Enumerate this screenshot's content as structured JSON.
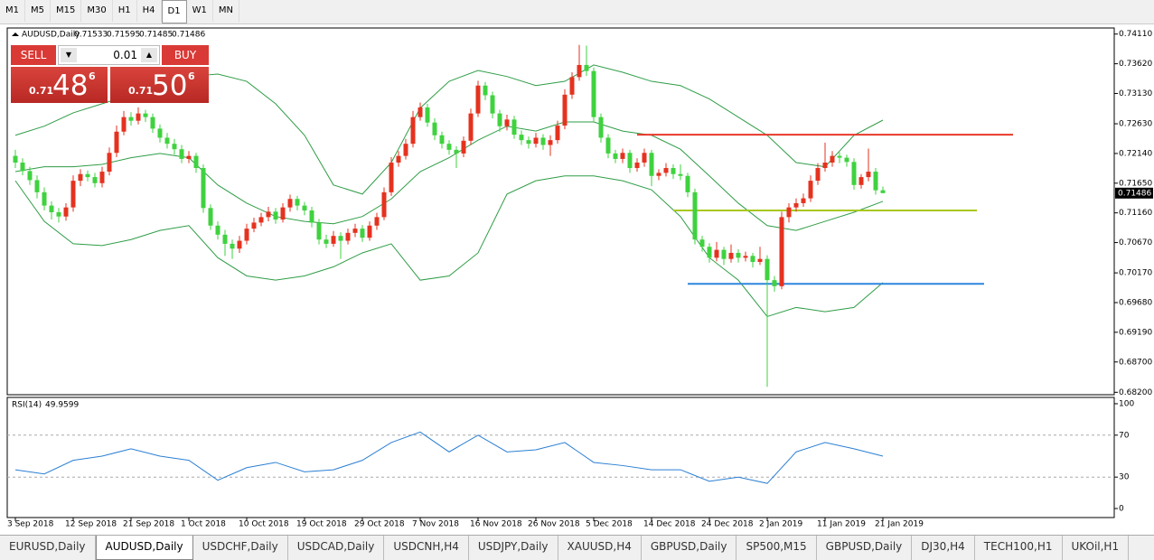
{
  "toolbar": {
    "timeframes": [
      "M1",
      "M5",
      "M15",
      "M30",
      "H1",
      "H4",
      "D1",
      "W1",
      "MN"
    ],
    "active": "D1"
  },
  "trade_panel": {
    "sell": "SELL",
    "lot": "0.01",
    "buy": "BUY",
    "bid": {
      "big": "0.71",
      "pips": "48",
      "point": "6"
    },
    "ask": {
      "big": "0.71",
      "pips": "50",
      "point": "6"
    }
  },
  "chart_data": [
    {
      "type": "candlestick",
      "title": "AUDUSD,Daily",
      "up_color": "#e5321f",
      "down_color": "#3fd23f",
      "xlim": [
        -1.125,
        152
      ],
      "ylim": [
        0.6816,
        0.7421
      ],
      "yticks": [
        {
          "value": 0.7411,
          "label": "0.74110"
        },
        {
          "value": 0.7362,
          "label": "0.73620"
        },
        {
          "value": 0.7313,
          "label": "0.73130"
        },
        {
          "value": 0.7263,
          "label": "0.72630"
        },
        {
          "value": 0.7214,
          "label": "0.72140"
        },
        {
          "value": 0.7165,
          "label": "0.71650"
        },
        {
          "value": 0.7116,
          "label": "0.71160"
        },
        {
          "value": 0.7067,
          "label": "0.70670"
        },
        {
          "value": 0.7017,
          "label": "0.70170"
        },
        {
          "value": 0.6968,
          "label": "0.69680"
        },
        {
          "value": 0.6919,
          "label": "0.69190"
        },
        {
          "value": 0.687,
          "label": "0.68700"
        },
        {
          "value": 0.682,
          "label": "0.68200"
        }
      ],
      "xticks": [
        {
          "value": 0,
          "label": "3 Sep 2018"
        },
        {
          "value": 8,
          "label": "12 Sep 2018"
        },
        {
          "value": 16,
          "label": "21 Sep 2018"
        },
        {
          "value": 24,
          "label": "1 Oct 2018"
        },
        {
          "value": 32,
          "label": "10 Oct 2018"
        },
        {
          "value": 40,
          "label": "19 Oct 2018"
        },
        {
          "value": 48,
          "label": "29 Oct 2018"
        },
        {
          "value": 56,
          "label": "7 Nov 2018"
        },
        {
          "value": 64,
          "label": "16 Nov 2018"
        },
        {
          "value": 72,
          "label": "26 Nov 2018"
        },
        {
          "value": 80,
          "label": "5 Dec 2018"
        },
        {
          "value": 88,
          "label": "14 Dec 2018"
        },
        {
          "value": 96,
          "label": "24 Dec 2018"
        },
        {
          "value": 104,
          "label": "2 Jan 2019"
        },
        {
          "value": 112,
          "label": "11 Jan 2019"
        },
        {
          "value": 120,
          "label": "21 Jan 2019"
        }
      ],
      "ohlc": [
        [
          0.721,
          0.722,
          0.719,
          0.7199
        ],
        [
          0.7199,
          0.7206,
          0.7178,
          0.7185
        ],
        [
          0.7185,
          0.7192,
          0.7162,
          0.717
        ],
        [
          0.717,
          0.7178,
          0.714,
          0.715
        ],
        [
          0.715,
          0.7158,
          0.712,
          0.7128
        ],
        [
          0.7128,
          0.7135,
          0.7105,
          0.7117
        ],
        [
          0.7117,
          0.7124,
          0.71,
          0.711
        ],
        [
          0.711,
          0.7132,
          0.7103,
          0.7125
        ],
        [
          0.7125,
          0.7178,
          0.7118,
          0.7169
        ],
        [
          0.7169,
          0.7188,
          0.716,
          0.718
        ],
        [
          0.718,
          0.7186,
          0.7168,
          0.7175
        ],
        [
          0.7175,
          0.7182,
          0.7158,
          0.7165
        ],
        [
          0.7165,
          0.7192,
          0.7158,
          0.7184
        ],
        [
          0.7184,
          0.7224,
          0.7178,
          0.7215
        ],
        [
          0.7215,
          0.726,
          0.7208,
          0.725
        ],
        [
          0.725,
          0.7284,
          0.7244,
          0.7274
        ],
        [
          0.7274,
          0.7282,
          0.726,
          0.7268
        ],
        [
          0.7268,
          0.729,
          0.7262,
          0.728
        ],
        [
          0.728,
          0.7286,
          0.7266,
          0.7274
        ],
        [
          0.7274,
          0.728,
          0.7248,
          0.7255
        ],
        [
          0.7255,
          0.7262,
          0.7232,
          0.724
        ],
        [
          0.724,
          0.7248,
          0.7222,
          0.723
        ],
        [
          0.723,
          0.7238,
          0.7212,
          0.7221
        ],
        [
          0.7221,
          0.7228,
          0.7198,
          0.7205
        ],
        [
          0.7205,
          0.7218,
          0.7198,
          0.721
        ],
        [
          0.721,
          0.7215,
          0.7182,
          0.719
        ],
        [
          0.719,
          0.7196,
          0.7116,
          0.7124
        ],
        [
          0.7124,
          0.713,
          0.7088,
          0.7095
        ],
        [
          0.7095,
          0.7102,
          0.7072,
          0.708
        ],
        [
          0.708,
          0.7088,
          0.7045,
          0.7065
        ],
        [
          0.7065,
          0.7072,
          0.704,
          0.7057
        ],
        [
          0.7057,
          0.7078,
          0.705,
          0.707
        ],
        [
          0.707,
          0.7098,
          0.7064,
          0.709
        ],
        [
          0.709,
          0.7108,
          0.7084,
          0.71
        ],
        [
          0.71,
          0.7116,
          0.7094,
          0.7109
        ],
        [
          0.7109,
          0.7126,
          0.7102,
          0.7118
        ],
        [
          0.7118,
          0.7124,
          0.7098,
          0.7105
        ],
        [
          0.7105,
          0.7132,
          0.71,
          0.7125
        ],
        [
          0.7125,
          0.7146,
          0.7118,
          0.7139
        ],
        [
          0.7139,
          0.7144,
          0.712,
          0.7128
        ],
        [
          0.7128,
          0.7134,
          0.7112,
          0.712
        ],
        [
          0.712,
          0.7126,
          0.7092,
          0.71
        ],
        [
          0.71,
          0.7106,
          0.7064,
          0.7072
        ],
        [
          0.7072,
          0.708,
          0.7058,
          0.7065
        ],
        [
          0.7065,
          0.7086,
          0.706,
          0.7078
        ],
        [
          0.7078,
          0.7084,
          0.704,
          0.707
        ],
        [
          0.707,
          0.709,
          0.7064,
          0.7083
        ],
        [
          0.7083,
          0.7098,
          0.7076,
          0.709
        ],
        [
          0.709,
          0.7096,
          0.7068,
          0.7075
        ],
        [
          0.7075,
          0.7102,
          0.707,
          0.7095
        ],
        [
          0.7095,
          0.7116,
          0.7088,
          0.7109
        ],
        [
          0.7109,
          0.7158,
          0.7104,
          0.715
        ],
        [
          0.715,
          0.7208,
          0.7144,
          0.7199
        ],
        [
          0.7199,
          0.7218,
          0.7192,
          0.721
        ],
        [
          0.721,
          0.7238,
          0.7204,
          0.723
        ],
        [
          0.723,
          0.7284,
          0.7224,
          0.7274
        ],
        [
          0.7274,
          0.7298,
          0.7268,
          0.729
        ],
        [
          0.729,
          0.7296,
          0.7258,
          0.7265
        ],
        [
          0.7265,
          0.7272,
          0.7236,
          0.7244
        ],
        [
          0.7244,
          0.725,
          0.7222,
          0.723
        ],
        [
          0.723,
          0.7236,
          0.7212,
          0.722
        ],
        [
          0.722,
          0.7226,
          0.719,
          0.7214
        ],
        [
          0.7214,
          0.7242,
          0.7208,
          0.7235
        ],
        [
          0.7235,
          0.7288,
          0.7228,
          0.728
        ],
        [
          0.728,
          0.7334,
          0.7274,
          0.7326
        ],
        [
          0.7326,
          0.7332,
          0.7302,
          0.731
        ],
        [
          0.731,
          0.7316,
          0.7272,
          0.728
        ],
        [
          0.728,
          0.7286,
          0.725,
          0.7259
        ],
        [
          0.7259,
          0.7278,
          0.7252,
          0.727
        ],
        [
          0.727,
          0.7276,
          0.7238,
          0.7245
        ],
        [
          0.7245,
          0.7252,
          0.7228,
          0.7236
        ],
        [
          0.7236,
          0.7242,
          0.7222,
          0.723
        ],
        [
          0.723,
          0.7248,
          0.7224,
          0.724
        ],
        [
          0.724,
          0.7246,
          0.722,
          0.7228
        ],
        [
          0.7228,
          0.7244,
          0.721,
          0.7236
        ],
        [
          0.7236,
          0.7268,
          0.723,
          0.726
        ],
        [
          0.726,
          0.732,
          0.7254,
          0.7311
        ],
        [
          0.7311,
          0.7348,
          0.7304,
          0.734
        ],
        [
          0.734,
          0.7393,
          0.7334,
          0.736
        ],
        [
          0.736,
          0.7392,
          0.7342,
          0.735
        ],
        [
          0.735,
          0.7356,
          0.7266,
          0.7274
        ],
        [
          0.7274,
          0.728,
          0.7232,
          0.724
        ],
        [
          0.724,
          0.7246,
          0.7206,
          0.7214
        ],
        [
          0.7214,
          0.722,
          0.7198,
          0.7205
        ],
        [
          0.7205,
          0.7222,
          0.7198,
          0.7215
        ],
        [
          0.7215,
          0.722,
          0.7182,
          0.719
        ],
        [
          0.719,
          0.7206,
          0.7184,
          0.7199
        ],
        [
          0.7199,
          0.7222,
          0.7192,
          0.7215
        ],
        [
          0.7215,
          0.722,
          0.716,
          0.7177
        ],
        [
          0.7177,
          0.7188,
          0.717,
          0.7182
        ],
        [
          0.7182,
          0.7198,
          0.7176,
          0.719
        ],
        [
          0.719,
          0.7196,
          0.7172,
          0.718
        ],
        [
          0.718,
          0.7196,
          0.717,
          0.7177
        ],
        [
          0.7177,
          0.7182,
          0.7142,
          0.715
        ],
        [
          0.715,
          0.7156,
          0.7064,
          0.7072
        ],
        [
          0.7072,
          0.7078,
          0.7052,
          0.706
        ],
        [
          0.706,
          0.7066,
          0.7034,
          0.7042
        ],
        [
          0.7042,
          0.7068,
          0.7036,
          0.7055
        ],
        [
          0.7055,
          0.706,
          0.703,
          0.704
        ],
        [
          0.704,
          0.7064,
          0.7034,
          0.705
        ],
        [
          0.705,
          0.7056,
          0.7034,
          0.7042
        ],
        [
          0.7042,
          0.7052,
          0.7036,
          0.7045
        ],
        [
          0.7045,
          0.705,
          0.7026,
          0.7035
        ],
        [
          0.7035,
          0.706,
          0.703,
          0.704
        ],
        [
          0.704,
          0.7046,
          0.6829,
          0.7005
        ],
        [
          0.7005,
          0.7012,
          0.6986,
          0.6995
        ],
        [
          0.6995,
          0.7118,
          0.699,
          0.7109
        ],
        [
          0.7109,
          0.7132,
          0.71,
          0.7125
        ],
        [
          0.7125,
          0.714,
          0.7118,
          0.7132
        ],
        [
          0.7132,
          0.7148,
          0.7126,
          0.714
        ],
        [
          0.714,
          0.7178,
          0.7134,
          0.7169
        ],
        [
          0.7169,
          0.7198,
          0.7162,
          0.719
        ],
        [
          0.719,
          0.7232,
          0.7184,
          0.7199
        ],
        [
          0.7199,
          0.7218,
          0.7192,
          0.721
        ],
        [
          0.721,
          0.7216,
          0.7198,
          0.7207
        ],
        [
          0.7207,
          0.7212,
          0.7192,
          0.72
        ],
        [
          0.72,
          0.7206,
          0.7154,
          0.7162
        ],
        [
          0.7162,
          0.718,
          0.7156,
          0.7175
        ],
        [
          0.7175,
          0.7222,
          0.7168,
          0.7184
        ],
        [
          0.7184,
          0.719,
          0.7146,
          0.71533
        ],
        [
          0.71533,
          0.71595,
          0.71485,
          0.71486
        ]
      ],
      "bands": {
        "color": "#2f9d46",
        "x": [
          0,
          4,
          8,
          12,
          16,
          20,
          24,
          28,
          32,
          36,
          40,
          44,
          48,
          52,
          56,
          60,
          64,
          68,
          72,
          76,
          80,
          84,
          88,
          92,
          96,
          100,
          104,
          108,
          112,
          116,
          120
        ],
        "upper": [
          0.7244,
          0.7259,
          0.7281,
          0.7296,
          0.7311,
          0.7326,
          0.7341,
          0.7345,
          0.7333,
          0.7296,
          0.7244,
          0.7162,
          0.7147,
          0.7199,
          0.7289,
          0.7333,
          0.7351,
          0.7341,
          0.7326,
          0.7333,
          0.736,
          0.7348,
          0.7333,
          0.7326,
          0.7304,
          0.7274,
          0.7244,
          0.7199,
          0.7192,
          0.7244,
          0.7269
        ],
        "middle": [
          0.7184,
          0.7192,
          0.7192,
          0.7196,
          0.7207,
          0.7214,
          0.7207,
          0.7162,
          0.7132,
          0.711,
          0.7102,
          0.7098,
          0.711,
          0.7139,
          0.7184,
          0.7207,
          0.7236,
          0.7259,
          0.7251,
          0.7266,
          0.7266,
          0.7251,
          0.7244,
          0.7221,
          0.7177,
          0.7132,
          0.7095,
          0.7087,
          0.7102,
          0.7117,
          0.7135
        ],
        "lower": [
          0.7169,
          0.7102,
          0.7065,
          0.7062,
          0.7072,
          0.7087,
          0.7095,
          0.7042,
          0.7012,
          0.7005,
          0.7012,
          0.7027,
          0.705,
          0.7065,
          0.7005,
          0.7012,
          0.705,
          0.7147,
          0.7169,
          0.7177,
          0.7177,
          0.7169,
          0.7154,
          0.711,
          0.7042,
          0.7005,
          0.6945,
          0.696,
          0.6953,
          0.696,
          0.7001
        ]
      },
      "hlines": [
        {
          "value": 0.7245,
          "color": "#e8382a",
          "from": 86,
          "to": 138
        },
        {
          "value": 0.712,
          "color": "#a8c81e",
          "from": 91,
          "to": 133
        },
        {
          "value": 0.6999,
          "color": "#2e86de",
          "from": 93,
          "to": 134
        }
      ]
    },
    {
      "type": "line",
      "title": "RSI(14)",
      "color": "#2a7fd4",
      "xlim": [
        -1.125,
        152
      ],
      "ylim": [
        -8.6,
        106
      ],
      "yticks": [
        100,
        70,
        30,
        0
      ],
      "levels": [
        30,
        70
      ],
      "x": [
        0,
        4,
        8,
        12,
        16,
        20,
        24,
        28,
        32,
        36,
        40,
        44,
        48,
        52,
        56,
        60,
        64,
        68,
        72,
        76,
        80,
        84,
        88,
        92,
        96,
        100,
        104,
        108,
        112,
        116,
        120
      ],
      "values": [
        37,
        33,
        46,
        50,
        57,
        50,
        46,
        27,
        39,
        44,
        35,
        37,
        46,
        63,
        73,
        54,
        70,
        54,
        56,
        63,
        44,
        41,
        37,
        37,
        26,
        30,
        24,
        54,
        63,
        57,
        49.9599
      ]
    }
  ],
  "tabs": {
    "items": [
      "EURUSD,Daily",
      "AUDUSD,Daily",
      "USDCHF,Daily",
      "USDCAD,Daily",
      "USDCNH,H4",
      "USDJPY,Daily",
      "XAUUSD,H4",
      "GBPUSD,Daily",
      "SP500,M15",
      "GBPUSD,Daily",
      "DJ30,H4",
      "TECH100,H1",
      "UKOil,H1"
    ],
    "active": "AUDUSD,Daily"
  }
}
